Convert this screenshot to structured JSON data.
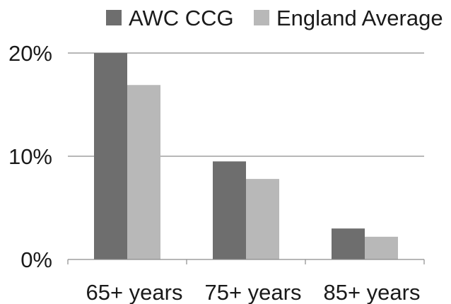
{
  "chart_data": {
    "type": "bar",
    "title": "",
    "xlabel": "",
    "ylabel": "",
    "categories": [
      "65+ years",
      "75+ years",
      "85+ years"
    ],
    "series": [
      {
        "name": "AWC CCG",
        "color": "#6e6e6e",
        "values": [
          20.0,
          9.5,
          3.0
        ]
      },
      {
        "name": "England Average",
        "color": "#b8b8b8",
        "values": [
          16.9,
          7.8,
          2.2
        ]
      }
    ],
    "ylim": [
      0,
      20
    ],
    "yticks": [
      {
        "value": 0,
        "label": "0%"
      },
      {
        "value": 10,
        "label": "10%"
      },
      {
        "value": 20,
        "label": "20%"
      }
    ],
    "grid": true,
    "legend_position": "top"
  }
}
